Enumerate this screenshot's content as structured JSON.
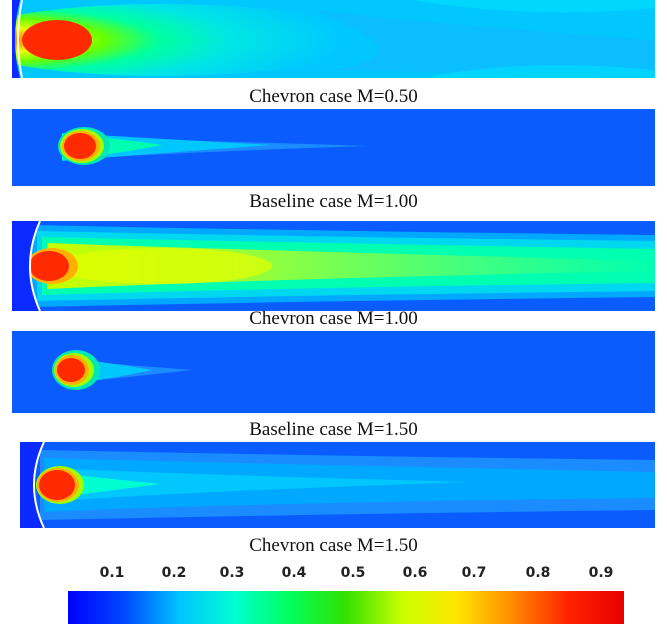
{
  "panels": [
    {
      "caption": "Chevron case M=0.50",
      "type": "chevron"
    },
    {
      "caption": "Baseline case M=1.00",
      "type": "baseline"
    },
    {
      "caption": "Chevron case M=1.00",
      "type": "chevron"
    },
    {
      "caption": "Baseline case M=1.50",
      "type": "baseline"
    },
    {
      "caption": "Chevron case M=1.50",
      "type": "chevron"
    }
  ],
  "colorbar": {
    "ticks": [
      "0.1",
      "0.2",
      "0.3",
      "0.4",
      "0.5",
      "0.6",
      "0.7",
      "0.8",
      "0.9"
    ],
    "colors": [
      "#0000ff",
      "#0047ff",
      "#00c4ff",
      "#00ffd0",
      "#00ff5a",
      "#32e100",
      "#c8ff00",
      "#ffe600",
      "#ff8a00",
      "#ff2200",
      "#e80000"
    ]
  }
}
